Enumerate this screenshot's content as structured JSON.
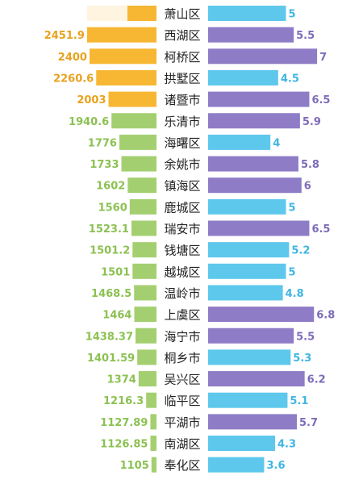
{
  "chart_data": {
    "type": "bar",
    "categories": [
      "萧山区",
      "西湖区",
      "柯桥区",
      "拱墅区",
      "诸暨市",
      "乐清市",
      "海曙区",
      "余姚市",
      "镇海区",
      "鹿城区",
      "瑞安市",
      "钱塘区",
      "越城区",
      "温岭市",
      "上虞区",
      "海宁市",
      "桐乡市",
      "吴兴区",
      "临平区",
      "平湖市",
      "南湖区",
      "奉化区"
    ],
    "series": [
      {
        "values": [
          null,
          2451.9,
          2400,
          2260.6,
          2003,
          1940.6,
          1776,
          1733,
          1602,
          1560,
          1523.1,
          1501.2,
          1501,
          1468.5,
          1464,
          1438.37,
          1401.59,
          1374,
          1216.3,
          1127.89,
          1126.85,
          1105
        ],
        "labels": [
          "",
          "2451.9",
          "2400",
          "2260.6",
          "2003",
          "1940.6",
          "1776",
          "1733",
          "1602",
          "1560",
          "1523.1",
          "1501.2",
          "1501",
          "1468.5",
          "1464",
          "1438.37",
          "1401.59",
          "1374",
          "1216.3",
          "1127.89",
          "1126.85",
          "1105"
        ],
        "colors": [
          "#f7b733",
          "#f7b733",
          "#f7b733",
          "#f7b733",
          "#f7b733",
          "#a4cf70",
          "#a4cf70",
          "#a4cf70",
          "#a4cf70",
          "#a4cf70",
          "#a4cf70",
          "#a4cf70",
          "#a4cf70",
          "#a4cf70",
          "#a4cf70",
          "#a4cf70",
          "#a4cf70",
          "#a4cf70",
          "#a4cf70",
          "#a4cf70",
          "#a4cf70",
          "#a4cf70"
        ],
        "label_colors": [
          "#e8a21f",
          "#e8a21f",
          "#e8a21f",
          "#e8a21f",
          "#e8a21f",
          "#8cc152",
          "#8cc152",
          "#8cc152",
          "#8cc152",
          "#8cc152",
          "#8cc152",
          "#8cc152",
          "#8cc152",
          "#8cc152",
          "#8cc152",
          "#8cc152",
          "#8cc152",
          "#8cc152",
          "#8cc152",
          "#8cc152",
          "#8cc152",
          "#8cc152"
        ]
      },
      {
        "values": [
          5,
          5.5,
          7,
          4.5,
          6.5,
          5.9,
          4,
          5.8,
          6,
          5,
          6.5,
          5.2,
          5,
          4.8,
          6.8,
          5.5,
          5.3,
          6.2,
          5.1,
          5.7,
          4.3,
          3.6
        ],
        "labels": [
          "5",
          "5.5",
          "7",
          "4.5",
          "6.5",
          "5.9",
          "4",
          "5.8",
          "6",
          "5",
          "6.5",
          "5.2",
          "5",
          "4.8",
          "6.8",
          "5.5",
          "5.3",
          "6.2",
          "5.1",
          "5.7",
          "4.3",
          "3.6"
        ],
        "colors": [
          "#5ec8ec",
          "#8f7cc7",
          "#8f7cc7",
          "#5ec8ec",
          "#8f7cc7",
          "#8f7cc7",
          "#5ec8ec",
          "#8f7cc7",
          "#8f7cc7",
          "#5ec8ec",
          "#8f7cc7",
          "#5ec8ec",
          "#5ec8ec",
          "#5ec8ec",
          "#8f7cc7",
          "#8f7cc7",
          "#5ec8ec",
          "#8f7cc7",
          "#5ec8ec",
          "#8f7cc7",
          "#5ec8ec",
          "#5ec8ec"
        ],
        "label_colors": [
          "#3fb6e2",
          "#7f6cba",
          "#7f6cba",
          "#3fb6e2",
          "#7f6cba",
          "#7f6cba",
          "#3fb6e2",
          "#7f6cba",
          "#7f6cba",
          "#3fb6e2",
          "#7f6cba",
          "#3fb6e2",
          "#3fb6e2",
          "#3fb6e2",
          "#7f6cba",
          "#7f6cba",
          "#3fb6e2",
          "#7f6cba",
          "#3fb6e2",
          "#7f6cba",
          "#3fb6e2",
          "#3fb6e2"
        ]
      }
    ],
    "grid": false,
    "legend": "none"
  }
}
